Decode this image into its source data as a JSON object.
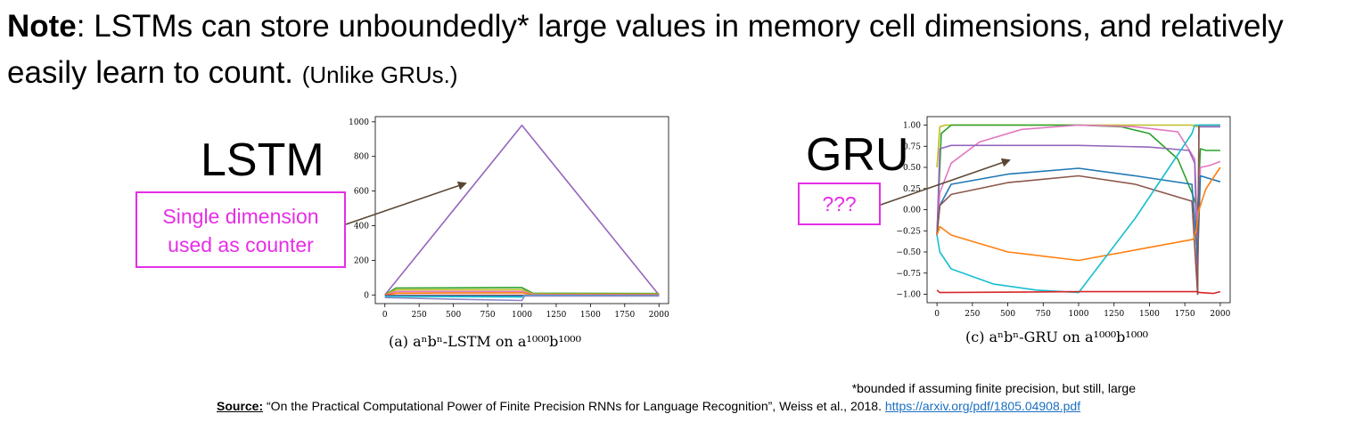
{
  "note": {
    "bold": "Note",
    "text": ": LSTMs can store unboundedly* large values in memory cell dimensions, and relatively easily learn to count.",
    "paren": "(Unlike GRUs.)"
  },
  "lstm_label": "LSTM",
  "gru_label": "GRU",
  "lstm_callout": [
    "Single dimension",
    "used as counter"
  ],
  "gru_callout": "???",
  "captions": {
    "lstm": "(a) aⁿbⁿ-LSTM on a¹⁰⁰⁰b¹⁰⁰⁰",
    "gru": "(c) aⁿbⁿ-GRU on a¹⁰⁰⁰b¹⁰⁰⁰"
  },
  "footnote": "*bounded if assuming finite precision, but still, large",
  "source": {
    "label": "Source:",
    "text": " “On the Practical Computational Power of Finite Precision RNNs for Language Recognition”, Weiss et al., 2018. ",
    "url": "https://arxiv.org/pdf/1805.04908.pdf"
  },
  "colors": {
    "magenta": "#e62ee6",
    "arrow": "#5a4632"
  },
  "chart_data": [
    {
      "type": "line",
      "xlim": [
        -70,
        2070
      ],
      "ylim": [
        -50,
        1030
      ],
      "xticks": [
        0,
        250,
        500,
        750,
        1000,
        1250,
        1500,
        1750,
        2000
      ],
      "yticks": [
        0,
        200,
        400,
        600,
        800,
        1000
      ],
      "grid": false,
      "series": [
        {
          "color": "#9467bd",
          "x": [
            0,
            1000,
            2000
          ],
          "y": [
            0,
            980,
            0
          ]
        },
        {
          "color": "#2ca02c",
          "x": [
            0,
            80,
            950,
            1000,
            1080,
            2000
          ],
          "y": [
            0,
            40,
            42,
            42,
            10,
            8
          ]
        },
        {
          "color": "#bcbd22",
          "x": [
            0,
            80,
            950,
            1000,
            1080,
            2000
          ],
          "y": [
            0,
            30,
            30,
            30,
            6,
            5
          ]
        },
        {
          "color": "#e377c2",
          "x": [
            0,
            80,
            950,
            1000,
            1080,
            2000
          ],
          "y": [
            0,
            20,
            20,
            20,
            3,
            2
          ]
        },
        {
          "color": "#ff7f0e",
          "x": [
            0,
            80,
            950,
            1000,
            1080,
            2000
          ],
          "y": [
            0,
            10,
            12,
            12,
            0,
            0
          ]
        },
        {
          "color": "#d62728",
          "x": [
            0,
            1000,
            2000
          ],
          "y": [
            -2,
            -2,
            -2
          ]
        },
        {
          "color": "#1f77b4",
          "x": [
            0,
            1000,
            2000
          ],
          "y": [
            -5,
            -5,
            -5
          ]
        },
        {
          "color": "#17becf",
          "x": [
            0,
            500,
            1000,
            1020,
            2000
          ],
          "y": [
            -8,
            -10,
            -12,
            -2,
            -3
          ]
        },
        {
          "color": "#8c84c8",
          "x": [
            0,
            500,
            1000,
            1020,
            2000
          ],
          "y": [
            -15,
            -25,
            -32,
            -5,
            -5
          ]
        }
      ]
    },
    {
      "type": "line",
      "xlim": [
        -70,
        2070
      ],
      "ylim": [
        -1.1,
        1.1
      ],
      "xticks": [
        0,
        250,
        500,
        750,
        1000,
        1250,
        1500,
        1750,
        2000
      ],
      "yticks": [
        1.0,
        0.75,
        0.5,
        0.25,
        0.0,
        -0.25,
        -0.5,
        -0.75,
        -1.0
      ],
      "ytick_labels": [
        "1.00",
        "0.75",
        "0.50",
        "0.25",
        "0.00",
        "−0.25",
        "−0.50",
        "−0.75",
        "−1.00"
      ],
      "grid": false,
      "series": [
        {
          "color": "#bcbd22",
          "x": [
            0,
            20,
            60,
            1000,
            1800,
            1840,
            1860,
            2000
          ],
          "y": [
            0.5,
            0.98,
            1.0,
            1.0,
            1.0,
            0.98,
            1.0,
            1.0
          ]
        },
        {
          "color": "#2ca02c",
          "x": [
            0,
            30,
            100,
            400,
            1000,
            1300,
            1500,
            1700,
            1800,
            1840,
            1860,
            1900,
            2000
          ],
          "y": [
            -0.3,
            0.9,
            1.0,
            1.0,
            1.0,
            0.98,
            0.9,
            0.6,
            0.2,
            0.0,
            0.72,
            0.7,
            0.7
          ]
        },
        {
          "color": "#e377c2",
          "x": [
            0,
            20,
            100,
            300,
            600,
            1000,
            1400,
            1700,
            1820,
            1840,
            1860,
            1920,
            2000
          ],
          "y": [
            -0.3,
            0.2,
            0.55,
            0.8,
            0.95,
            1.0,
            0.98,
            0.92,
            0.6,
            -0.3,
            0.5,
            0.52,
            0.57
          ]
        },
        {
          "color": "#9467bd",
          "x": [
            0,
            20,
            100,
            1000,
            1500,
            1780,
            1820,
            1840,
            1850,
            2000
          ],
          "y": [
            -0.3,
            0.72,
            0.76,
            0.76,
            0.74,
            0.7,
            0.55,
            -1.0,
            0.98,
            0.98
          ]
        },
        {
          "color": "#1f77b4",
          "x": [
            0,
            20,
            100,
            500,
            1000,
            1400,
            1800,
            1840,
            1860,
            2000
          ],
          "y": [
            -0.3,
            0.05,
            0.3,
            0.42,
            0.49,
            0.4,
            0.3,
            -0.6,
            0.4,
            0.33
          ]
        },
        {
          "color": "#8c564b",
          "x": [
            0,
            20,
            100,
            500,
            1000,
            1400,
            1800,
            1840,
            1850,
            2000
          ],
          "y": [
            -0.3,
            0.05,
            0.18,
            0.32,
            0.4,
            0.3,
            0.1,
            -1.0,
            1.0,
            1.0
          ]
        },
        {
          "color": "#ff7f0e",
          "x": [
            0,
            20,
            100,
            500,
            1000,
            1810,
            1830,
            1850,
            1900,
            2000
          ],
          "y": [
            -0.3,
            -0.2,
            -0.3,
            -0.5,
            -0.6,
            -0.35,
            -0.25,
            0.0,
            0.25,
            0.5
          ]
        },
        {
          "color": "#17becf",
          "x": [
            0,
            20,
            100,
            400,
            700,
            1000,
            1400,
            1800,
            1820,
            1900,
            2000
          ],
          "y": [
            -0.3,
            -0.5,
            -0.7,
            -0.88,
            -0.95,
            -0.98,
            -0.1,
            0.9,
            1.0,
            1.0,
            1.0
          ]
        },
        {
          "color": "#d62728",
          "x": [
            0,
            20,
            1000,
            1840,
            1850,
            1860,
            1950,
            2000
          ],
          "y": [
            -0.95,
            -0.98,
            -0.97,
            -0.97,
            -0.98,
            -0.98,
            -0.99,
            -0.97
          ]
        }
      ]
    }
  ]
}
